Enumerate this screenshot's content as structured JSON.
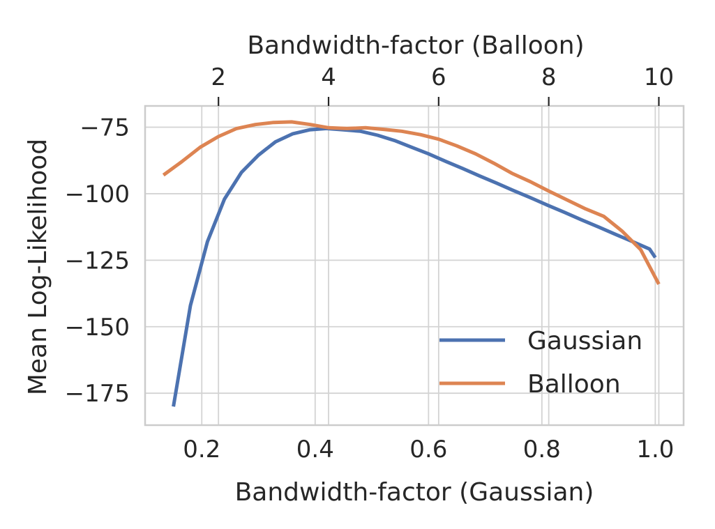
{
  "chart_data": {
    "type": "line",
    "xlabel": "Bandwidth-factor (Gaussian)",
    "x2label": "Bandwidth-factor (Balloon)",
    "ylabel": "Mean Log-Likelihood",
    "xlim": [
      0.1,
      1.05
    ],
    "x2lim": [
      0.667,
      10.45
    ],
    "ylim": [
      -187,
      -67
    ],
    "x_ticks": [
      0.2,
      0.4,
      0.6,
      0.8,
      1.0
    ],
    "x_tick_labels": [
      "0.2",
      "0.4",
      "0.6",
      "0.8",
      "1.0"
    ],
    "x2_ticks": [
      2,
      4,
      6,
      8,
      10
    ],
    "x2_tick_labels": [
      "2",
      "4",
      "6",
      "8",
      "10"
    ],
    "y_ticks": [
      -75,
      -100,
      -125,
      -150,
      -175
    ],
    "y_tick_labels": [
      "−75",
      "−100",
      "−125",
      "−150",
      "−175"
    ],
    "grid": true,
    "legend_position": "lower-right",
    "series": [
      {
        "name": "Gaussian",
        "color": "#4c72b0",
        "axis": "bottom",
        "x": [
          0.15,
          0.18,
          0.21,
          0.24,
          0.27,
          0.3,
          0.33,
          0.36,
          0.39,
          0.42,
          0.45,
          0.48,
          0.51,
          0.54,
          0.57,
          0.6,
          0.63,
          0.66,
          0.69,
          0.72,
          0.75,
          0.78,
          0.81,
          0.84,
          0.87,
          0.9,
          0.93,
          0.96,
          0.99,
          1.0
        ],
        "values": [
          -180,
          -142,
          -118,
          -102,
          -92,
          -85.5,
          -80.5,
          -77.5,
          -76,
          -75.5,
          -76,
          -76.5,
          -78,
          -80,
          -82.5,
          -85,
          -87.8,
          -90.5,
          -93.3,
          -96,
          -98.8,
          -101.5,
          -104.3,
          -107,
          -109.8,
          -112.5,
          -115.3,
          -118,
          -120.8,
          -124
        ]
      },
      {
        "name": "Balloon",
        "color": "#dd8452",
        "axis": "top",
        "x": [
          1.0,
          1.33,
          1.67,
          2.0,
          2.33,
          2.67,
          3.0,
          3.33,
          3.67,
          4.0,
          4.33,
          4.67,
          5.0,
          5.33,
          5.67,
          6.0,
          6.33,
          6.67,
          7.0,
          7.33,
          7.67,
          8.0,
          8.33,
          8.67,
          9.0,
          9.33,
          9.67,
          10.0
        ],
        "values": [
          -93,
          -88,
          -82.5,
          -78.5,
          -75.5,
          -74,
          -73.2,
          -73,
          -74,
          -75.2,
          -75.5,
          -75.2,
          -75.8,
          -76.5,
          -77.8,
          -79.5,
          -82,
          -85,
          -88.5,
          -92.3,
          -95.5,
          -99,
          -102.3,
          -105.7,
          -108.5,
          -114,
          -121,
          -134
        ]
      }
    ]
  }
}
